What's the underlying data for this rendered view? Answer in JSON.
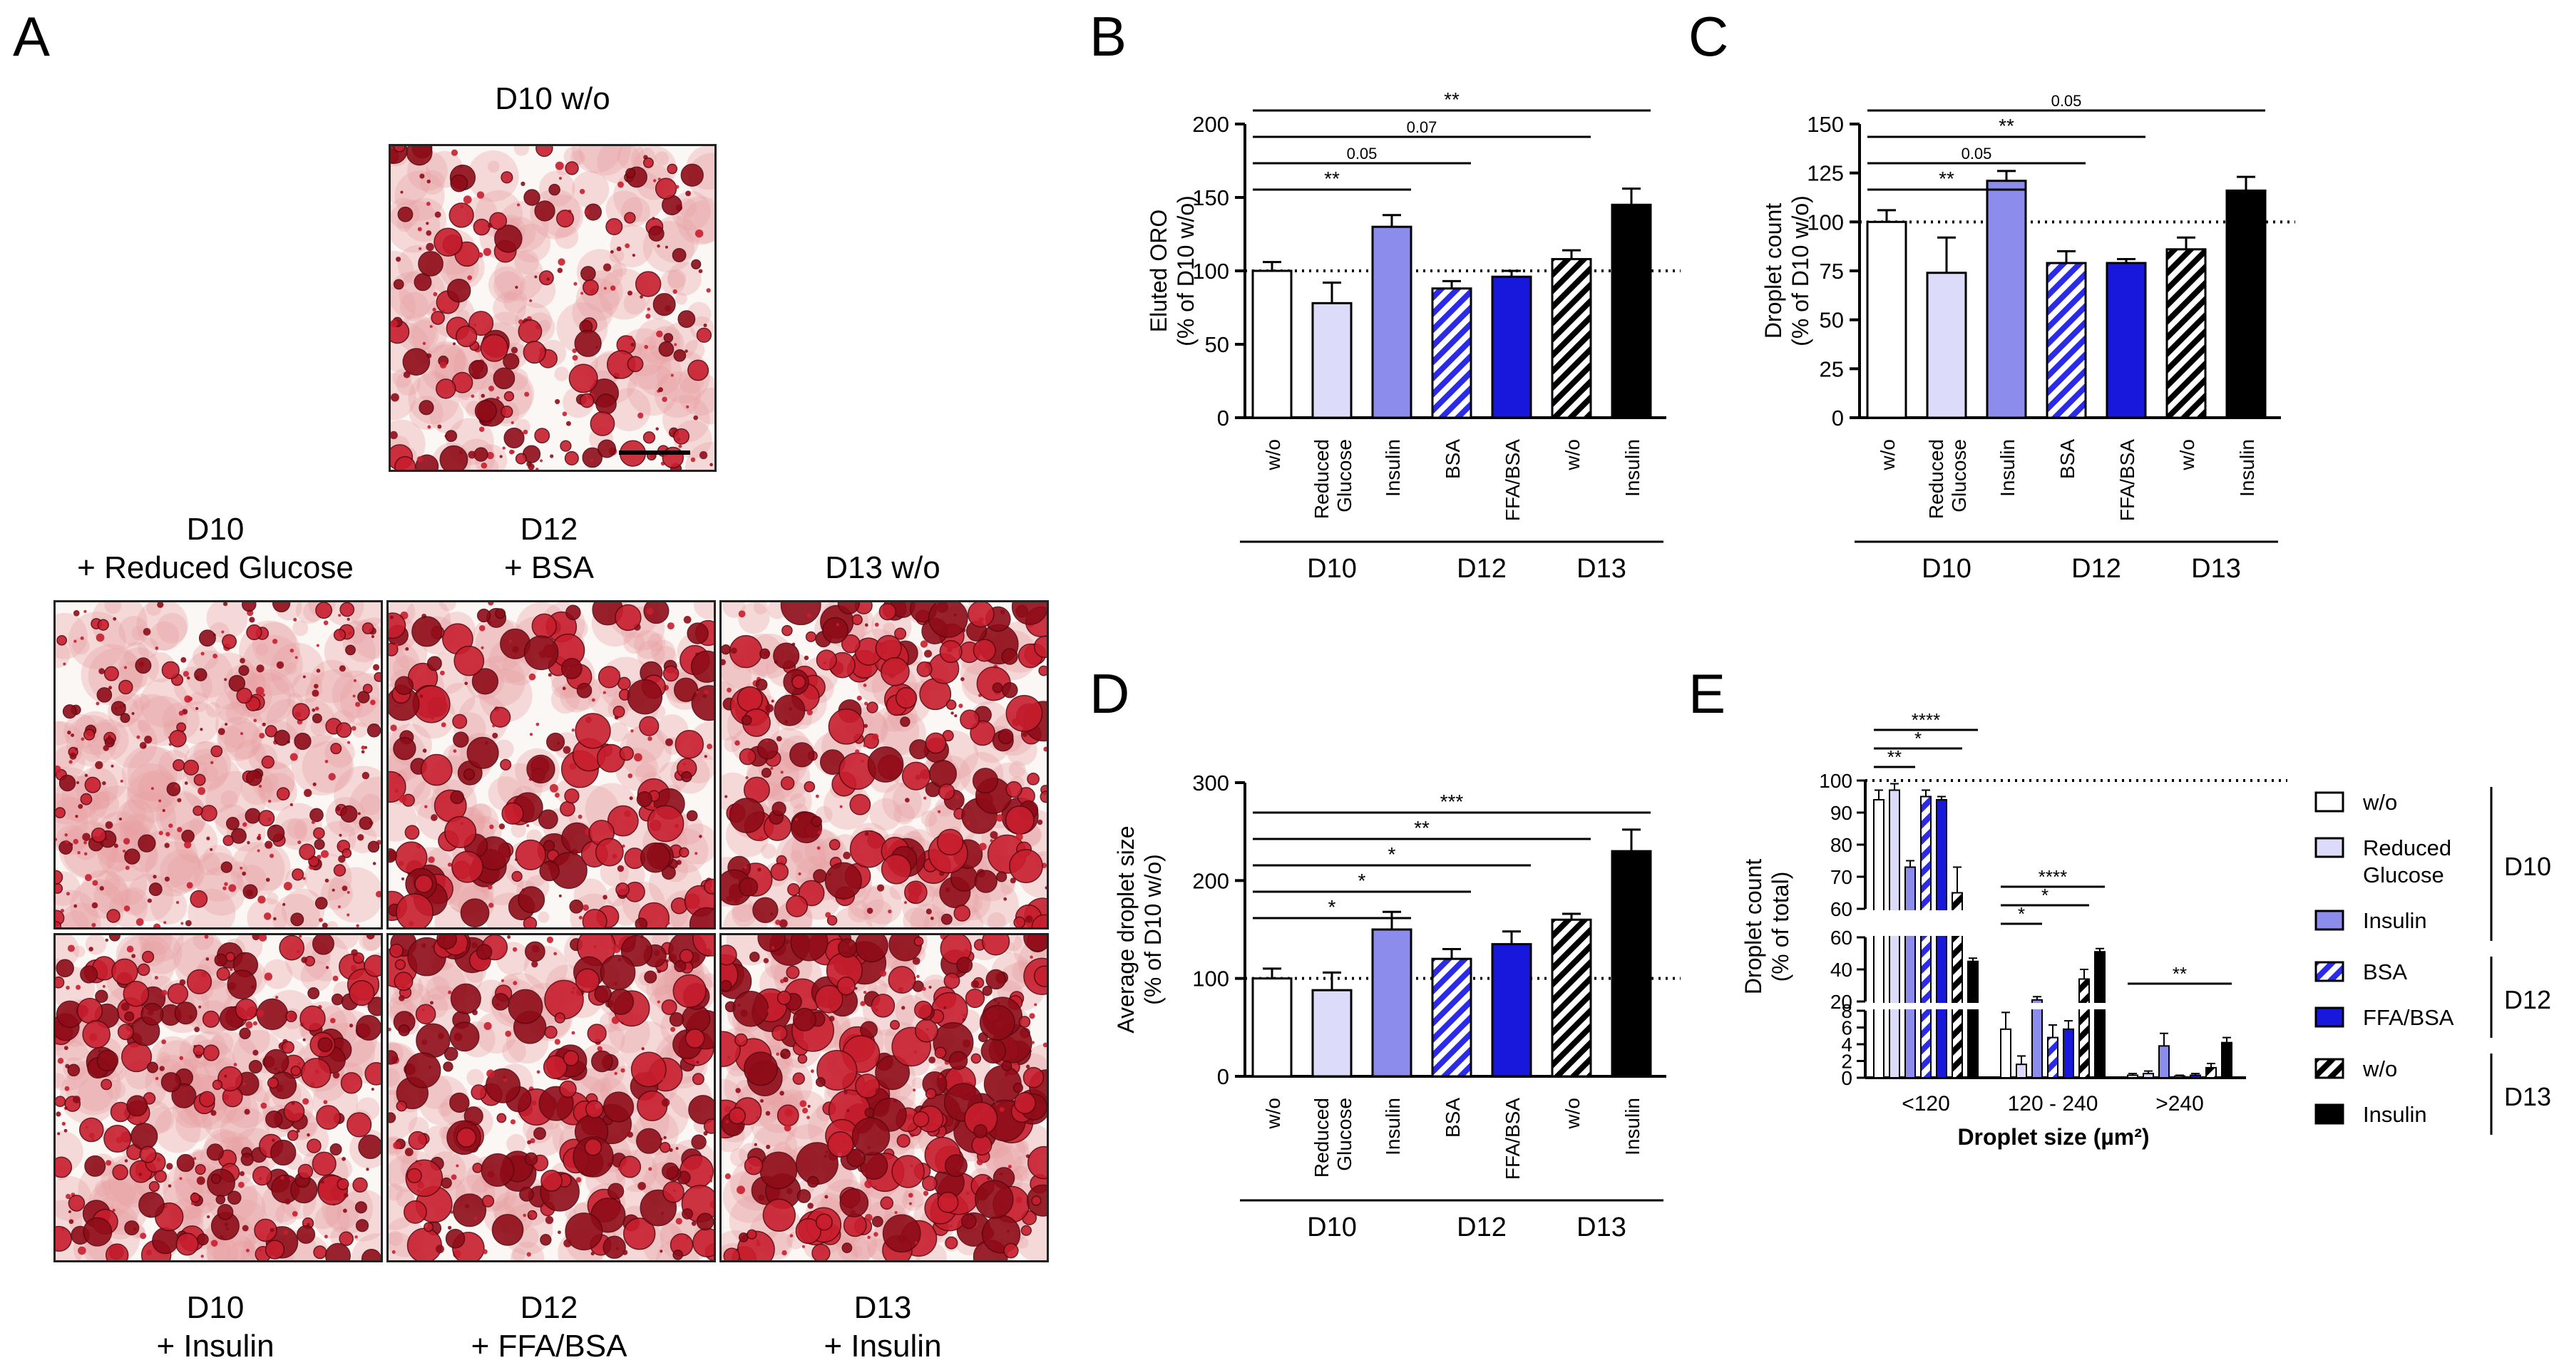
{
  "panel_letters": {
    "a": "A",
    "b": "B",
    "c": "C",
    "d": "D",
    "e": "E"
  },
  "colors": {
    "w_o": "#ffffff",
    "reduced_glucose": "#dcdcfa",
    "insulin_d10": "#8c8cec",
    "bsa": "#2a2ae8",
    "ffa_bsa": "#1818dc",
    "w_o_d13": "#000000",
    "insulin_d13": "#000000",
    "stain_dark": "#8e0c18",
    "stain_mid": "#c81e2e",
    "stain_light": "#e8a0a4"
  },
  "micrographs": {
    "top": {
      "caption": "D10 w/o"
    },
    "row1": [
      {
        "caption_line1": "D10",
        "caption_line2": "+ Reduced Glucose"
      },
      {
        "caption_line1": "D12",
        "caption_line2": "+ BSA"
      },
      {
        "caption_line1": "D13 w/o",
        "caption_line2": ""
      }
    ],
    "row2": [
      {
        "caption_line1": "D10",
        "caption_line2": "+ Insulin"
      },
      {
        "caption_line1": "D12",
        "caption_line2": "+ FFA/BSA"
      },
      {
        "caption_line1": "D13",
        "caption_line2": "+ Insulin"
      }
    ]
  },
  "chart_data": [
    {
      "panel": "B",
      "type": "bar",
      "ylabel": "Eluted ORO",
      "ylabel2": "(% of D10 w/o)",
      "ylim": [
        0,
        200
      ],
      "yticks": [
        0,
        50,
        100,
        150,
        200
      ],
      "reference_line": 100,
      "categories": [
        "w/o",
        "Reduced Glucose",
        "Insulin",
        "BSA",
        "FFA/BSA",
        "w/o",
        "Insulin"
      ],
      "values": [
        100,
        78,
        130,
        88,
        96,
        108,
        145
      ],
      "errors": [
        6,
        14,
        8,
        5,
        4,
        6,
        11
      ],
      "styles": [
        "white",
        "lavender",
        "periwinkle",
        "hatch-blue",
        "blue",
        "hatch-black",
        "black"
      ],
      "groups": [
        {
          "name": "D10",
          "from": 0,
          "to": 2
        },
        {
          "name": "D12",
          "from": 3,
          "to": 4
        },
        {
          "name": "D13",
          "from": 5,
          "to": 6
        }
      ],
      "annotations": [
        {
          "from": 0,
          "to": 2,
          "label": "**"
        },
        {
          "from": 0,
          "to": 3,
          "label": "0.05"
        },
        {
          "from": 0,
          "to": 5,
          "label": "0.07"
        },
        {
          "from": 0,
          "to": 6,
          "label": "**"
        }
      ]
    },
    {
      "panel": "C",
      "type": "bar",
      "ylabel": "Droplet count",
      "ylabel2": "(% of D10 w/o)",
      "ylim": [
        0,
        150
      ],
      "yticks": [
        0,
        25,
        50,
        75,
        100,
        125,
        150
      ],
      "reference_line": 100,
      "categories": [
        "w/o",
        "Reduced Glucose",
        "Insulin",
        "BSA",
        "FFA/BSA",
        "w/o",
        "Insulin"
      ],
      "values": [
        100,
        74,
        121,
        79,
        79,
        86,
        116
      ],
      "errors": [
        6,
        18,
        5,
        6,
        2,
        6,
        7
      ],
      "styles": [
        "white",
        "lavender",
        "periwinkle",
        "hatch-blue",
        "blue",
        "hatch-black",
        "black"
      ],
      "groups": [
        {
          "name": "D10",
          "from": 0,
          "to": 2
        },
        {
          "name": "D12",
          "from": 3,
          "to": 4
        },
        {
          "name": "D13",
          "from": 5,
          "to": 6
        }
      ],
      "annotations": [
        {
          "from": 0,
          "to": 2,
          "label": "**"
        },
        {
          "from": 0,
          "to": 3,
          "label": "0.05"
        },
        {
          "from": 0,
          "to": 4,
          "label": "**"
        },
        {
          "from": 0,
          "to": 6,
          "label": "0.05"
        }
      ]
    },
    {
      "panel": "D",
      "type": "bar",
      "ylabel": "Average droplet size",
      "ylabel2": "(% of D10 w/o)",
      "ylim": [
        0,
        300
      ],
      "yticks": [
        0,
        100,
        200,
        300
      ],
      "reference_line": 100,
      "categories": [
        "w/o",
        "Reduced Glucose",
        "Insulin",
        "BSA",
        "FFA/BSA",
        "w/o",
        "Insulin"
      ],
      "values": [
        100,
        88,
        150,
        120,
        135,
        160,
        230
      ],
      "errors": [
        10,
        18,
        18,
        10,
        13,
        6,
        22
      ],
      "styles": [
        "white",
        "lavender",
        "periwinkle",
        "hatch-blue",
        "blue",
        "hatch-black",
        "black"
      ],
      "groups": [
        {
          "name": "D10",
          "from": 0,
          "to": 2
        },
        {
          "name": "D12",
          "from": 3,
          "to": 4
        },
        {
          "name": "D13",
          "from": 5,
          "to": 6
        }
      ],
      "annotations": [
        {
          "from": 0,
          "to": 2,
          "label": "*"
        },
        {
          "from": 0,
          "to": 3,
          "label": "*"
        },
        {
          "from": 0,
          "to": 4,
          "label": "*"
        },
        {
          "from": 0,
          "to": 5,
          "label": "**"
        },
        {
          "from": 0,
          "to": 6,
          "label": "***"
        }
      ]
    },
    {
      "panel": "E",
      "type": "bar",
      "ylabel": "Droplet count",
      "ylabel2": "(% of total)",
      "xlabel": "Droplet size (µm²)",
      "categories": [
        "<120",
        "120 - 240",
        ">240"
      ],
      "segments": [
        {
          "range": [
            0,
            8
          ],
          "ticks": [
            0,
            2,
            4,
            6,
            8
          ]
        },
        {
          "range": [
            20,
            60
          ],
          "ticks": [
            20,
            40,
            60
          ]
        },
        {
          "range": [
            60,
            100
          ],
          "ticks": [
            60,
            70,
            80,
            90,
            100
          ]
        }
      ],
      "reference_line": 100,
      "series": [
        {
          "name": "w/o",
          "style": "white",
          "values": [
            94,
            5.8,
            0.3
          ],
          "errors": [
            3,
            2,
            0.2
          ]
        },
        {
          "name": "Reduced Glucose",
          "style": "lavender",
          "values": [
            97,
            1.6,
            0.5
          ],
          "errors": [
            2,
            1,
            0.3
          ]
        },
        {
          "name": "Insulin",
          "style": "periwinkle",
          "values": [
            73,
            21,
            3.8
          ],
          "errors": [
            2,
            2,
            1.5
          ]
        },
        {
          "name": "BSA",
          "style": "hatch-blue",
          "values": [
            95,
            4.8,
            0.2
          ],
          "errors": [
            2,
            1.5,
            0.1
          ]
        },
        {
          "name": "FFA/BSA",
          "style": "blue",
          "values": [
            94,
            5.8,
            0.3
          ],
          "errors": [
            1,
            1,
            0.2
          ]
        },
        {
          "name": "w/o",
          "style": "hatch-black",
          "values": [
            65,
            34,
            1.2
          ],
          "errors": [
            8,
            6,
            0.5
          ]
        },
        {
          "name": "Insulin",
          "style": "black",
          "values": [
            45,
            51,
            4.2
          ],
          "errors": [
            2,
            2,
            0.6
          ]
        }
      ],
      "annotations": [
        {
          "category": 0,
          "from": 0,
          "to": 2,
          "label": "**"
        },
        {
          "category": 0,
          "from": 0,
          "to": 5,
          "label": "*"
        },
        {
          "category": 0,
          "from": 0,
          "to": 6,
          "label": "****"
        },
        {
          "category": 1,
          "from": 0,
          "to": 2,
          "label": "*"
        },
        {
          "category": 1,
          "from": 0,
          "to": 5,
          "label": "*"
        },
        {
          "category": 1,
          "from": 0,
          "to": 6,
          "label": "****"
        },
        {
          "category": 2,
          "from": 0,
          "to": 6,
          "label": "**"
        }
      ],
      "legend": {
        "placement": "right",
        "groups": [
          {
            "name": "D10",
            "items": [
              {
                "label": "w/o",
                "style": "white"
              },
              {
                "label": "Reduced Glucose",
                "style": "lavender"
              },
              {
                "label": "Insulin",
                "style": "periwinkle"
              }
            ]
          },
          {
            "name": "D12",
            "items": [
              {
                "label": "BSA",
                "style": "hatch-blue"
              },
              {
                "label": "FFA/BSA",
                "style": "blue"
              }
            ]
          },
          {
            "name": "D13",
            "items": [
              {
                "label": "w/o",
                "style": "hatch-black"
              },
              {
                "label": "Insulin",
                "style": "black"
              }
            ]
          }
        ]
      }
    }
  ]
}
